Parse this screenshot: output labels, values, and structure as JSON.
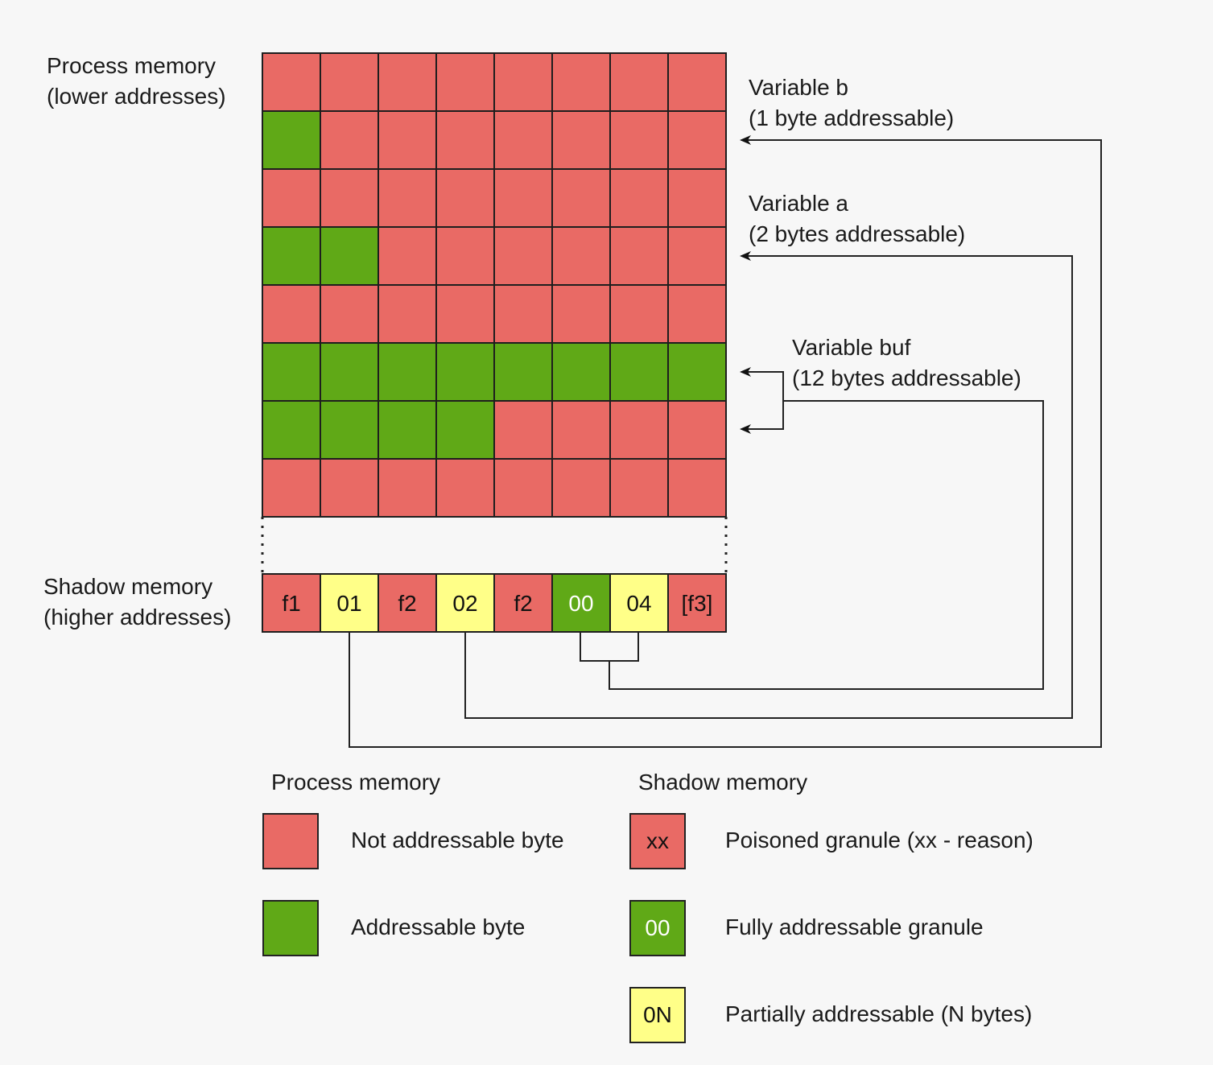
{
  "colors": {
    "red": "#e96a65",
    "green": "#60a917",
    "yellow": "#ffff88",
    "grid": "#1e1e1e",
    "background": "#f7f7f7"
  },
  "labels": {
    "process_memory_line1": "Process memory",
    "process_memory_line2": "(lower addresses)",
    "shadow_memory_line1": "Shadow memory",
    "shadow_memory_line2": "(higher addresses)",
    "var_b_line1": "Variable b",
    "var_b_line2": "(1 byte addressable)",
    "var_a_line1": "Variable a",
    "var_a_line2": "(2 bytes addressable)",
    "var_buf_line1": "Variable buf",
    "var_buf_line2": "(12 bytes addressable)"
  },
  "process_memory_grid": [
    "RRRRRRRR",
    "GRRRRRRR",
    "RRRRRRRR",
    "GGRRRRRR",
    "RRRRRRRR",
    "GGGGGGGG",
    "GGGGRRRR",
    "RRRRRRRR"
  ],
  "shadow_memory": [
    {
      "text": "f1",
      "color": "red"
    },
    {
      "text": "01",
      "color": "yellow"
    },
    {
      "text": "f2",
      "color": "red"
    },
    {
      "text": "02",
      "color": "yellow"
    },
    {
      "text": "f2",
      "color": "red"
    },
    {
      "text": "00",
      "color": "green"
    },
    {
      "text": "04",
      "color": "yellow"
    },
    {
      "text": "[f3]",
      "color": "red"
    }
  ],
  "legend": {
    "process_title": "Process memory",
    "shadow_title": "Shadow memory",
    "not_addressable": "Not addressable byte",
    "addressable": "Addressable byte",
    "poisoned_code": "xx",
    "poisoned": "Poisoned granule (xx - reason)",
    "fully_code": "00",
    "fully": "Fully addressable granule",
    "partial_code": "0N",
    "partial": "Partially addressable (N bytes)"
  }
}
